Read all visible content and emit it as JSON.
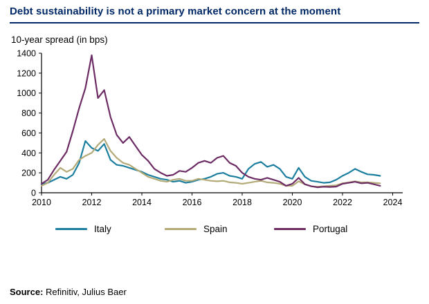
{
  "header": {
    "title": "Debt sustainability is not a primary market concern at the moment"
  },
  "source": {
    "label": "Source:",
    "text": "Refinitiv, Julius Baer"
  },
  "colors": {
    "title_navy": "#002866",
    "axis": "#000000"
  },
  "chart_data": {
    "type": "line",
    "title": "Debt sustainability is not a primary market concern at the moment",
    "subtitle": "10-year spread (in bps)",
    "xlabel": "",
    "ylabel": "10-year spread (in bps)",
    "grid": false,
    "legend_position": "bottom",
    "xlim": [
      2010,
      2024.4
    ],
    "ylim": [
      0,
      1400
    ],
    "xticks": [
      2010,
      2012,
      2014,
      2016,
      2018,
      2020,
      2022,
      2024
    ],
    "yticks": [
      0,
      200,
      400,
      600,
      800,
      1000,
      1200,
      1400
    ],
    "x": [
      2010,
      2010.25,
      2010.5,
      2010.75,
      2011,
      2011.25,
      2011.5,
      2011.75,
      2012,
      2012.25,
      2012.5,
      2012.75,
      2013,
      2013.25,
      2013.5,
      2013.75,
      2014,
      2014.25,
      2014.5,
      2014.75,
      2015,
      2015.25,
      2015.5,
      2015.75,
      2016,
      2016.25,
      2016.5,
      2016.75,
      2017,
      2017.25,
      2017.5,
      2017.75,
      2018,
      2018.25,
      2018.5,
      2018.75,
      2019,
      2019.25,
      2019.5,
      2019.75,
      2020,
      2020.25,
      2020.5,
      2020.75,
      2021,
      2021.25,
      2021.5,
      2021.75,
      2022,
      2022.25,
      2022.5,
      2022.75,
      2023,
      2023.25,
      2023.5
    ],
    "series": [
      {
        "name": "Italy",
        "color": "#1b7e9f",
        "values": [
          85,
          100,
          130,
          160,
          140,
          180,
          300,
          520,
          450,
          420,
          490,
          330,
          280,
          270,
          250,
          230,
          210,
          180,
          160,
          140,
          130,
          110,
          120,
          100,
          110,
          130,
          140,
          160,
          190,
          200,
          170,
          160,
          140,
          240,
          290,
          310,
          260,
          280,
          240,
          160,
          140,
          250,
          160,
          120,
          110,
          100,
          105,
          130,
          170,
          200,
          240,
          210,
          185,
          180,
          170
        ]
      },
      {
        "name": "Spain",
        "color": "#b3aa78",
        "values": [
          70,
          100,
          180,
          250,
          210,
          240,
          330,
          370,
          400,
          480,
          540,
          420,
          350,
          300,
          280,
          240,
          200,
          160,
          140,
          120,
          110,
          130,
          140,
          120,
          120,
          140,
          130,
          120,
          115,
          120,
          105,
          100,
          90,
          100,
          110,
          120,
          105,
          100,
          90,
          70,
          70,
          115,
          85,
          65,
          60,
          65,
          70,
          75,
          95,
          105,
          115,
          105,
          105,
          100,
          95
        ]
      },
      {
        "name": "Portugal",
        "color": "#6c2b63",
        "values": [
          90,
          130,
          230,
          320,
          410,
          620,
          850,
          1050,
          1380,
          950,
          1030,
          760,
          580,
          500,
          560,
          470,
          380,
          320,
          240,
          200,
          170,
          180,
          220,
          210,
          250,
          300,
          320,
          300,
          350,
          370,
          300,
          270,
          200,
          160,
          140,
          130,
          150,
          130,
          110,
          70,
          90,
          150,
          85,
          65,
          55,
          60,
          58,
          62,
          90,
          100,
          110,
          95,
          100,
          85,
          70
        ]
      }
    ]
  }
}
